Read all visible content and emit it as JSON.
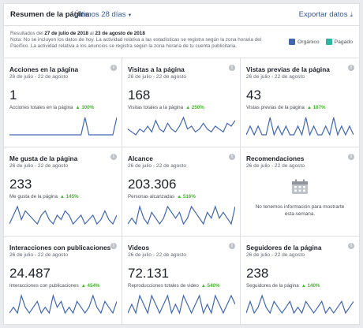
{
  "header": {
    "title": "Resumen de la página",
    "period": "Últimos 28 días",
    "export": "Exportar datos"
  },
  "notes": {
    "results_prefix": "Resultados del ",
    "date_from": "27 de julio de 2018",
    "results_mid": " al ",
    "date_to": "23 de agosto de 2018",
    "line2": "Nota: No se incluyen los datos de hoy. La actividad relativa a las estadísticas se registra según la zona horaria del",
    "line3": "Pacífico. La actividad relativa a los anuncios se registra según la zona horaria de tu cuenta publicitaria."
  },
  "legend": {
    "organic_label": "Orgánico",
    "organic_color": "#4267b2",
    "paid_label": "Pagado",
    "paid_color": "#2bb5a3"
  },
  "colors": {
    "up": "#42b72a",
    "spark": "#4267b2"
  },
  "cards": [
    {
      "title": "Acciones en la página",
      "date": "26 de julio - 22 de agosto",
      "value": "1",
      "sub": "Acciones totales en la página",
      "pct": "▲ 100%",
      "series": [
        0,
        0,
        0,
        0,
        0,
        0,
        0,
        0,
        0,
        0,
        0,
        0,
        0,
        0,
        0,
        0,
        0,
        0,
        0,
        1,
        0,
        0,
        0,
        0,
        0,
        0,
        0,
        1
      ]
    },
    {
      "title": "Visitas a la página",
      "date": "26 de julio - 22 de agosto",
      "value": "168",
      "sub": "Visitas totales a la página",
      "pct": "▲ 250%",
      "series": [
        6,
        5,
        4,
        6,
        5,
        7,
        5,
        9,
        6,
        5,
        8,
        6,
        5,
        7,
        10,
        6,
        7,
        5,
        6,
        8,
        6,
        5,
        7,
        6,
        5,
        8,
        7,
        9
      ]
    },
    {
      "title": "Vistas previas de la página",
      "date": "26 de julio - 22 de agosto",
      "value": "43",
      "sub": "Vistas previas de la página",
      "pct": "▲ 187%",
      "series": [
        1,
        2,
        1,
        2,
        1,
        1,
        3,
        1,
        2,
        1,
        2,
        1,
        1,
        2,
        1,
        3,
        1,
        2,
        1,
        1,
        2,
        1,
        3,
        1,
        2,
        1,
        2,
        1
      ]
    },
    {
      "title": "Me gusta de la página",
      "date": "26 de julio - 22 de agosto",
      "value": "233",
      "sub": "Me gusta de la página",
      "pct": "▲ 145%",
      "series": [
        7,
        9,
        11,
        8,
        10,
        9,
        8,
        7,
        9,
        10,
        8,
        7,
        9,
        8,
        10,
        9,
        7,
        8,
        9,
        7,
        8,
        9,
        7,
        8,
        10,
        8,
        7,
        9
      ]
    },
    {
      "title": "Alcance",
      "date": "26 de julio - 22 de agosto",
      "value": "203.306",
      "sub": "Personas alcanzadas",
      "pct": "▲ 516%",
      "series": [
        6,
        7,
        6,
        9,
        7,
        6,
        8,
        7,
        6,
        7,
        9,
        8,
        7,
        8,
        6,
        7,
        9,
        8,
        7,
        6,
        8,
        7,
        9,
        7,
        8,
        7,
        6,
        9
      ]
    },
    {
      "title": "Recomendaciones",
      "date": "26 de julio - 22 de agosto",
      "empty_line1": "No tenemos información para mostrarte",
      "empty_line2": "esta semana."
    },
    {
      "title": "Interacciones con publicaciones",
      "date": "26 de julio - 22 de agosto",
      "value": "24.487",
      "sub": "Interacciones con publicaciones",
      "pct": "▲ 454%",
      "series": [
        6,
        7,
        6,
        9,
        7,
        6,
        7,
        8,
        6,
        7,
        6,
        9,
        7,
        8,
        6,
        7,
        6,
        8,
        7,
        6,
        7,
        9,
        7,
        6,
        8,
        7,
        6,
        8
      ]
    },
    {
      "title": "Videos",
      "date": "26 de julio - 22 de agosto",
      "value": "72.131",
      "sub": "Reproducciones totales de video",
      "pct": "▲ 540%",
      "series": [
        6,
        7,
        6,
        8,
        7,
        6,
        8,
        7,
        6,
        7,
        8,
        6,
        7,
        6,
        8,
        7,
        6,
        7,
        8,
        6,
        7,
        6,
        8,
        7,
        6,
        7,
        8,
        7
      ]
    },
    {
      "title": "Seguidores de la página",
      "date": "26 de julio - 22 de agosto",
      "value": "238",
      "sub": "Seguidores de la página",
      "pct": "▲ 140%",
      "series": [
        7,
        9,
        7,
        8,
        10,
        8,
        7,
        9,
        8,
        7,
        8,
        9,
        7,
        8,
        7,
        9,
        8,
        7,
        8,
        9,
        7,
        8,
        7,
        8,
        9,
        7,
        8,
        9
      ]
    }
  ]
}
